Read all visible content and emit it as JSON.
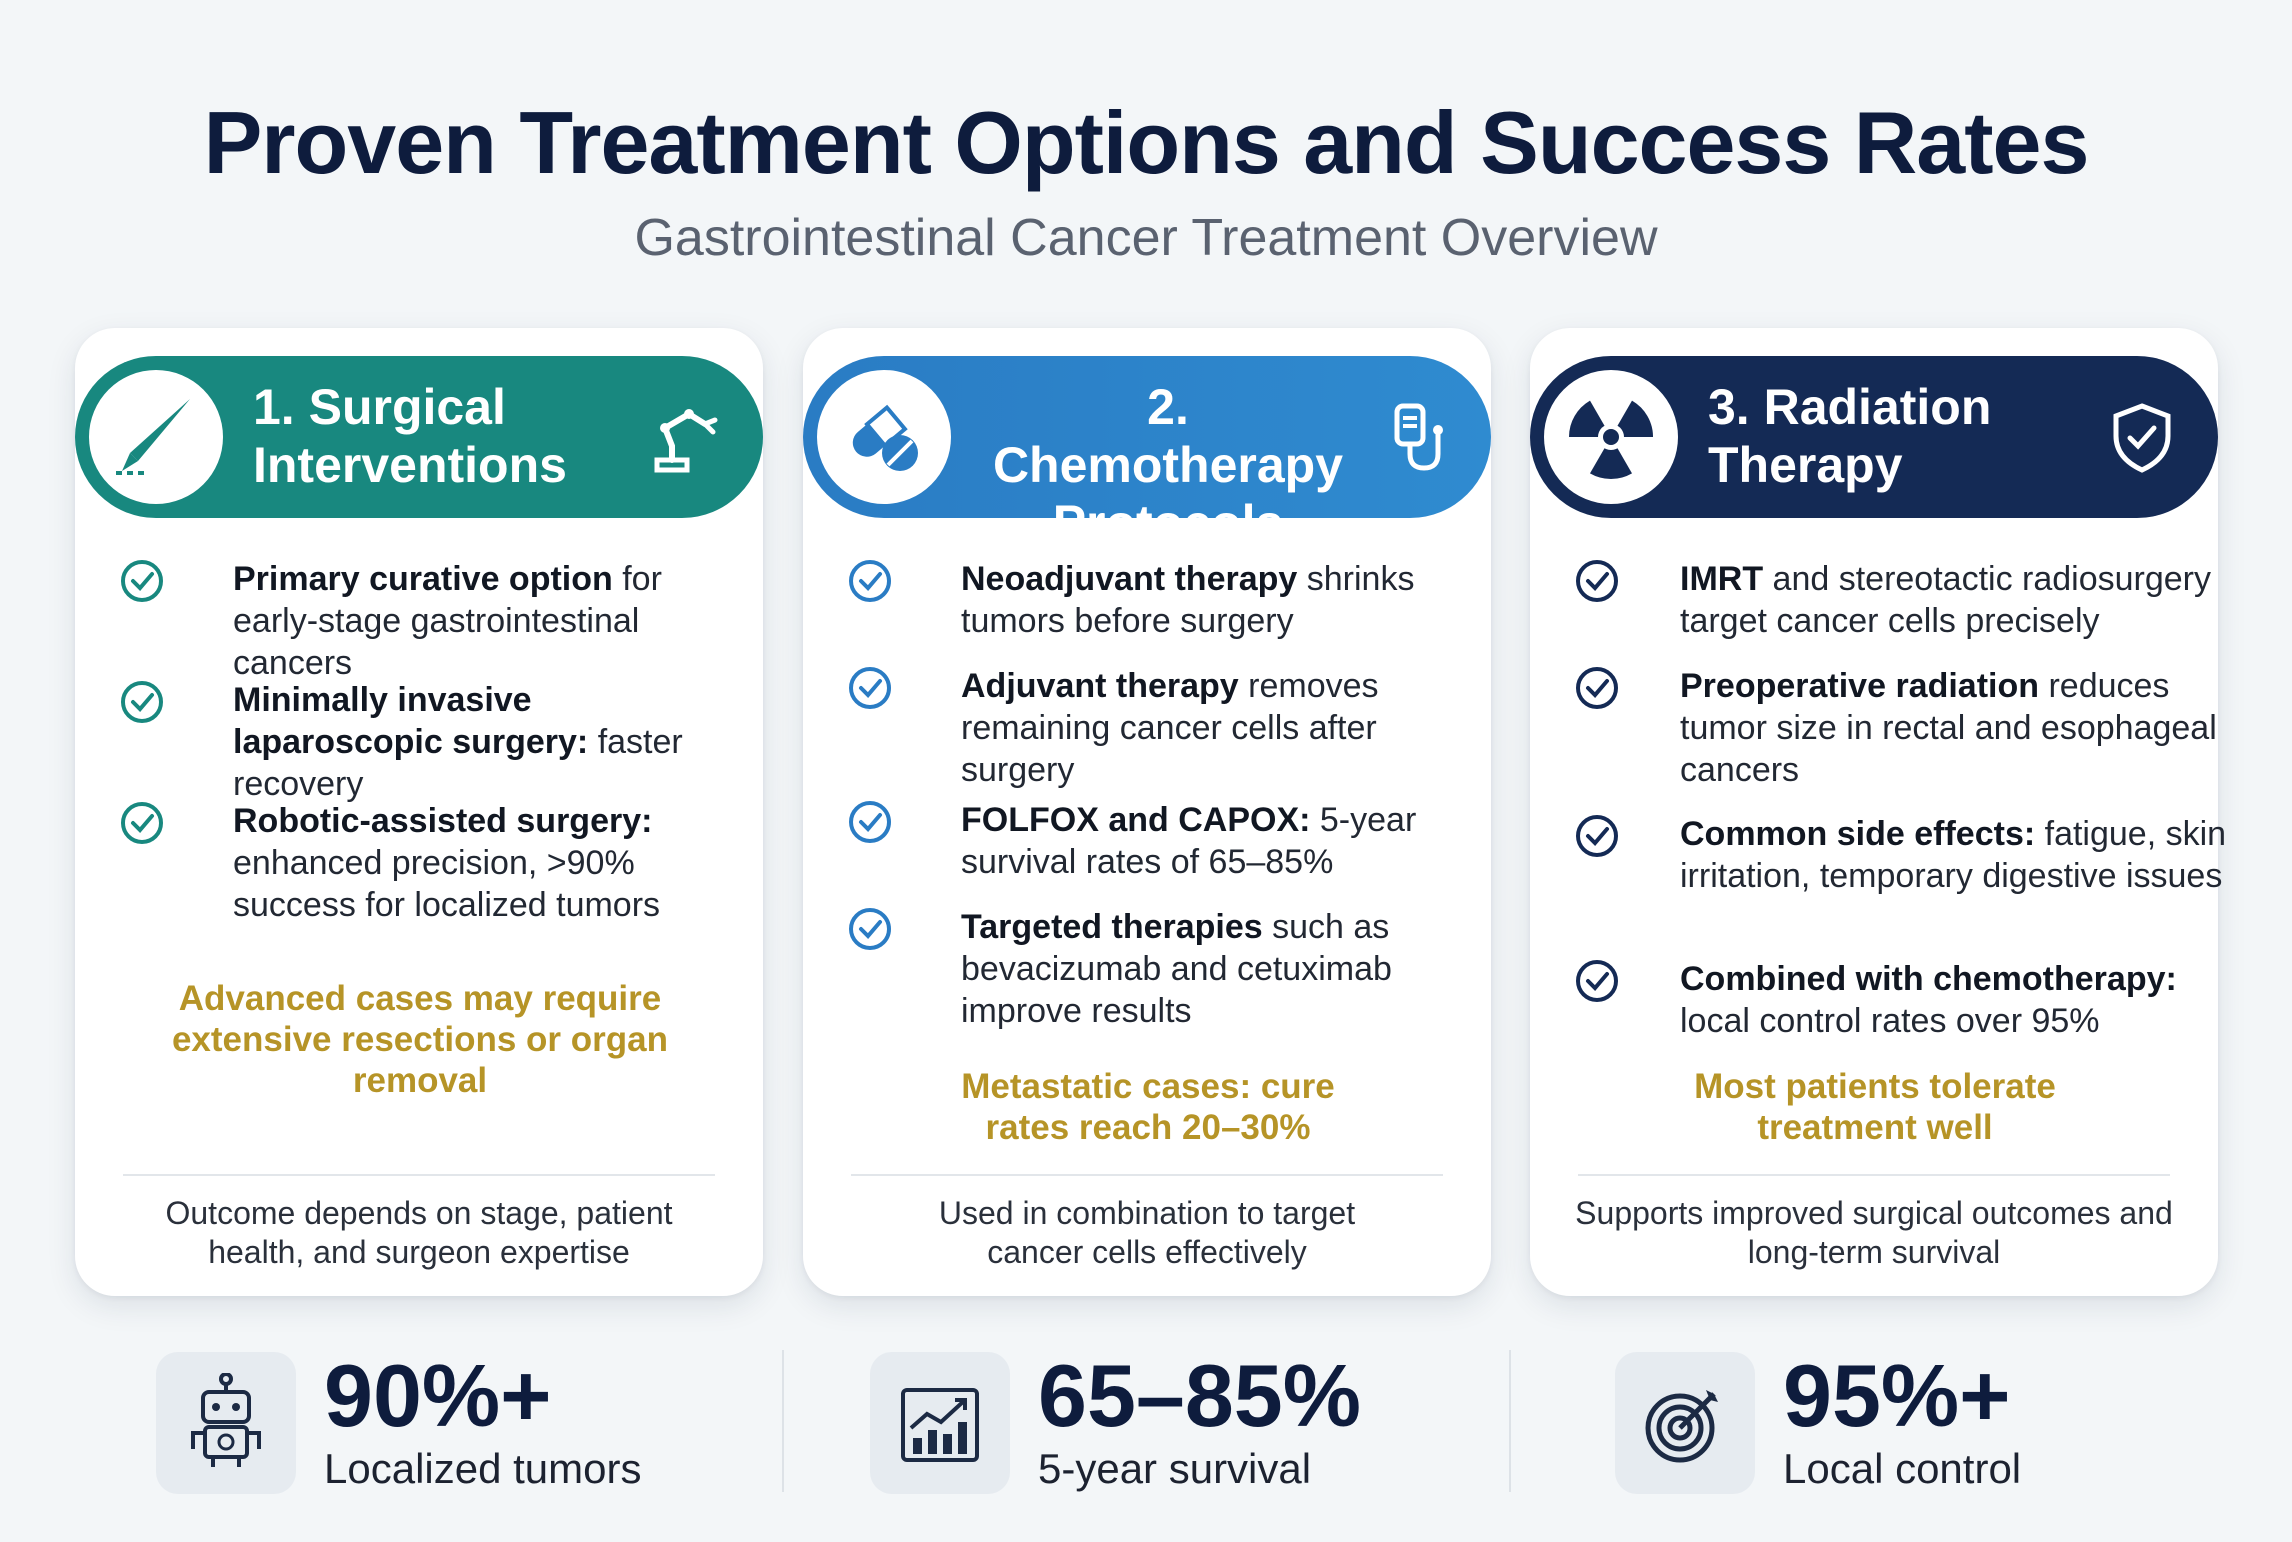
{
  "header": {
    "title": "Proven Treatment Options and Success Rates",
    "subtitle": "Gastrointestinal Cancer Treatment Overview"
  },
  "colors": {
    "surgical": "#18887f",
    "chemo": "#2a7cc4",
    "radiation": "#142a55",
    "highlight": "#b69427"
  },
  "cards": [
    {
      "title_line1": "1. Surgical",
      "title_line2": "Interventions",
      "left_icon": "scalpel-icon",
      "right_icon": "robotic-arm-icon",
      "items": [
        {
          "bold": "Primary curative option",
          "rest": " for early-stage gastrointestinal cancers"
        },
        {
          "bold": "Minimally invasive laparoscopic surgery:",
          "rest": " faster recovery"
        },
        {
          "bold": "Robotic-assisted surgery:",
          "rest": " enhanced precision, >90% success for localized tumors"
        }
      ],
      "highlight": "Advanced cases may require extensive resections or organ removal",
      "footer": "Outcome depends on stage, patient health, and surgeon expertise"
    },
    {
      "title_line1": "2. Chemotherapy",
      "title_line2": "Protocols",
      "left_icon": "pills-icon",
      "right_icon": "iv-drip-icon",
      "items": [
        {
          "bold": "Neoadjuvant therapy",
          "rest": " shrinks tumors before surgery"
        },
        {
          "bold": "Adjuvant therapy",
          "rest": " removes remaining cancer cells after surgery"
        },
        {
          "bold": "FOLFOX and CAPOX:",
          "rest": " 5-year survival rates of 65–85%"
        },
        {
          "bold": "Targeted therapies",
          "rest": " such as bevacizumab and cetuximab improve results"
        }
      ],
      "highlight": "Metastatic cases: cure rates reach 20–30%",
      "footer": "Used in combination to target cancer cells effectively"
    },
    {
      "title_line1": "3. Radiation",
      "title_line2": "Therapy",
      "left_icon": "radiation-icon",
      "right_icon": "shield-check-icon",
      "items": [
        {
          "bold": "IMRT",
          "rest": " and stereotactic radiosurgery target cancer cells precisely"
        },
        {
          "bold": "Preoperative radiation",
          "rest": " reduces tumor size in rectal and esophageal cancers"
        },
        {
          "bold": "Common side effects:",
          "rest": " fatigue, skin irritation, temporary digestive issues"
        },
        {
          "bold": "Combined with chemotherapy:",
          "rest": " local control rates over 95%"
        }
      ],
      "highlight": "Most patients tolerate treatment well",
      "footer": "Supports improved surgical outcomes and long-term survival"
    }
  ],
  "stats": [
    {
      "value": "90%+",
      "label": "Localized tumors",
      "icon": "robot-icon"
    },
    {
      "value": "65–85%",
      "label": "5-year survival",
      "icon": "growth-chart-icon"
    },
    {
      "value": "95%+",
      "label": "Local control",
      "icon": "target-icon"
    }
  ]
}
